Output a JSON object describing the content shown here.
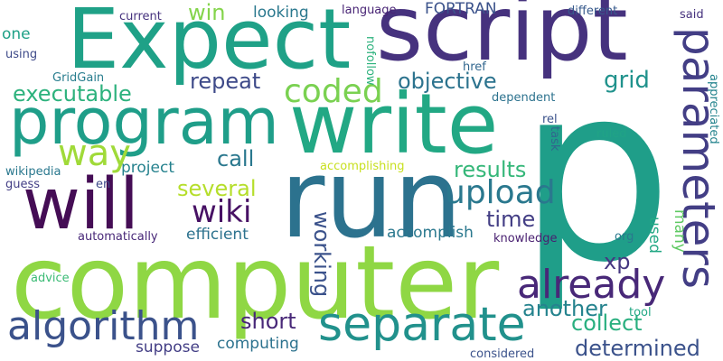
{
  "words": [
    {
      "text": "p",
      "color": "#1f9e89"
    },
    {
      "text": "computer",
      "color": "#8fd744"
    },
    {
      "text": "run",
      "color": "#2c728e"
    },
    {
      "text": "script",
      "color": "#46327e"
    },
    {
      "text": "Expect",
      "color": "#1fa187"
    },
    {
      "text": "write",
      "color": "#22a884"
    },
    {
      "text": "program",
      "color": "#1f9e89"
    },
    {
      "text": "will",
      "color": "#450d55"
    },
    {
      "text": "parameters",
      "color": "#433e85"
    },
    {
      "text": "separate",
      "color": "#21918c"
    },
    {
      "text": "algorithm",
      "color": "#3b528b"
    },
    {
      "text": "already",
      "color": "#482878"
    },
    {
      "text": "upload",
      "color": "#2a788e"
    },
    {
      "text": "coded",
      "color": "#7ad151"
    },
    {
      "text": "way",
      "color": "#a0da39"
    },
    {
      "text": "wiki",
      "color": "#471164"
    },
    {
      "text": "executable",
      "color": "#2db27d"
    },
    {
      "text": "repeat",
      "color": "#3e4a89"
    },
    {
      "text": "objective",
      "color": "#2c738e"
    },
    {
      "text": "grid",
      "color": "#20928c"
    },
    {
      "text": "results",
      "color": "#35b779"
    },
    {
      "text": "several",
      "color": "#b5de2b"
    },
    {
      "text": "time",
      "color": "#433e85"
    },
    {
      "text": "call",
      "color": "#2a788e"
    },
    {
      "text": "project",
      "color": "#26828e"
    },
    {
      "text": "working",
      "color": "#3b528b"
    },
    {
      "text": "another",
      "color": "#25838e"
    },
    {
      "text": "collect",
      "color": "#29af7f"
    },
    {
      "text": "short",
      "color": "#482878"
    },
    {
      "text": "determined",
      "color": "#3b528b"
    },
    {
      "text": "computing",
      "color": "#2c728e"
    },
    {
      "text": "suppose",
      "color": "#433e85"
    },
    {
      "text": "accomplish",
      "color": "#2a788e"
    },
    {
      "text": "efficient",
      "color": "#2c728e"
    },
    {
      "text": "xp",
      "color": "#453781"
    },
    {
      "text": "used",
      "color": "#22a884"
    },
    {
      "text": "many",
      "color": "#5ec962"
    },
    {
      "text": "win",
      "color": "#84d44b"
    },
    {
      "text": "looking",
      "color": "#2a788e"
    },
    {
      "text": "FORTRAN",
      "color": "#3b528b"
    },
    {
      "text": "one",
      "color": "#1fa187"
    },
    {
      "text": "current",
      "color": "#46327e"
    },
    {
      "text": "language",
      "color": "#482475"
    },
    {
      "text": "different",
      "color": "#375a8c"
    },
    {
      "text": "said",
      "color": "#46327e"
    },
    {
      "text": "using",
      "color": "#3e4a89"
    },
    {
      "text": "GridGain",
      "color": "#287d8e"
    },
    {
      "text": "href",
      "color": "#31668e"
    },
    {
      "text": "nofollow",
      "color": "#2db27d"
    },
    {
      "text": "dependent",
      "color": "#2c728e"
    },
    {
      "text": "appreciated",
      "color": "#25848e"
    },
    {
      "text": "rel",
      "color": "#3b528b"
    },
    {
      "text": "task",
      "color": "#31668e"
    },
    {
      "text": "ruled",
      "color": "#20a386"
    },
    {
      "text": "accomplishing",
      "color": "#c8e020"
    },
    {
      "text": "wikipedia",
      "color": "#2a788e"
    },
    {
      "text": "guess",
      "color": "#433e85"
    },
    {
      "text": "en",
      "color": "#3e4a89"
    },
    {
      "text": "automatically",
      "color": "#482878"
    },
    {
      "text": "knowledge",
      "color": "#481f70"
    },
    {
      "text": "org",
      "color": "#2a788e"
    },
    {
      "text": "advice",
      "color": "#3bbb75"
    },
    {
      "text": "tool",
      "color": "#22a884"
    },
    {
      "text": "considered",
      "color": "#3b528b"
    }
  ]
}
